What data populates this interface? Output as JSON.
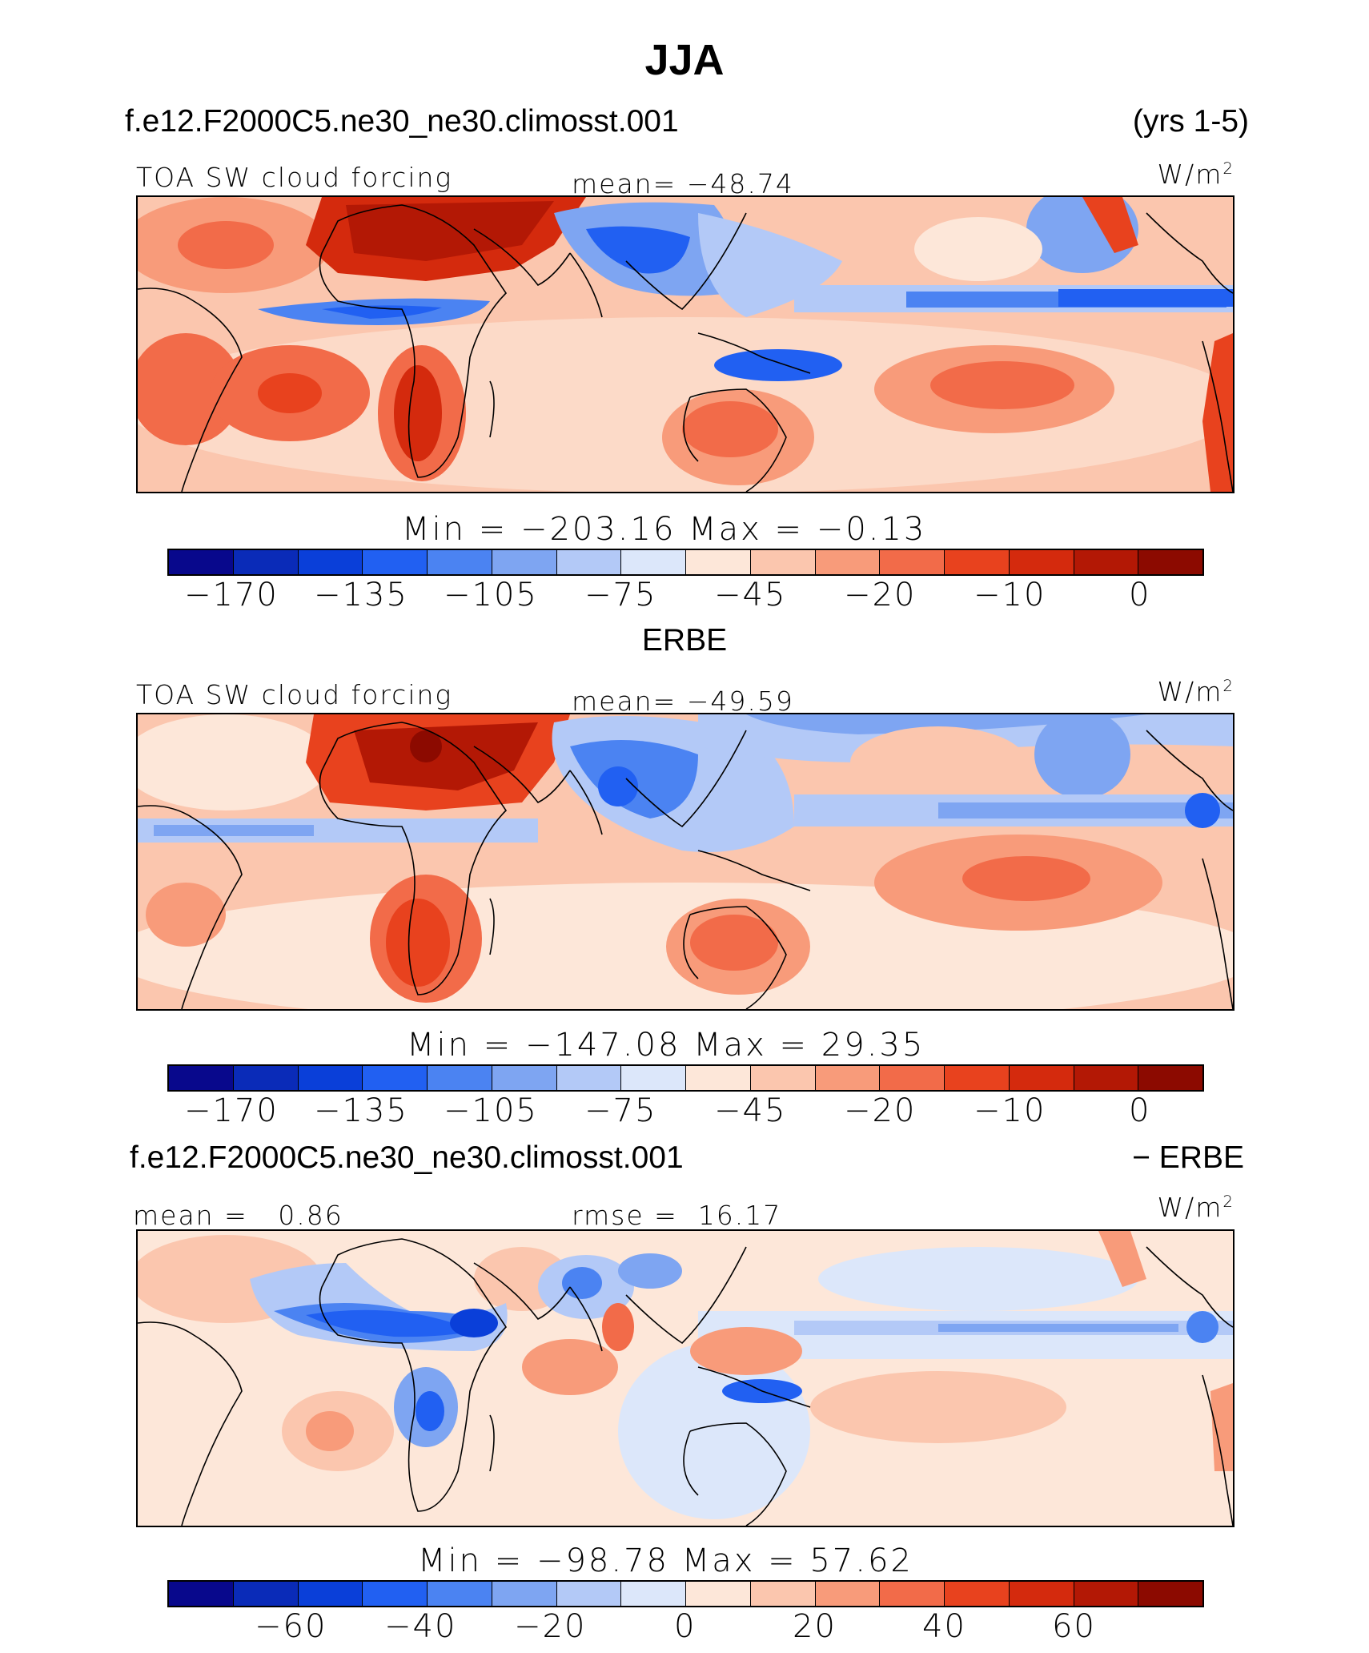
{
  "title": "JJA",
  "colors": [
    "#08088c",
    "#0a2bb8",
    "#0a3fd9",
    "#2160f2",
    "#4b83f2",
    "#7ea5f2",
    "#b3c9f7",
    "#dce7fa",
    "#fde7d9",
    "#fbc6ae",
    "#f89b7a",
    "#f26b49",
    "#e8421e",
    "#d42a0d",
    "#b31805",
    "#8c0a00"
  ],
  "panels": [
    {
      "name": "model",
      "case_title": "f.e12.F2000C5.ne30_ne30.climosst.001",
      "right_title": "(yrs 1-5)",
      "variable": "TOA SW cloud forcing",
      "stat_label": "mean=",
      "stat_value": "-48.74",
      "units": "W/m",
      "units_exp": "2",
      "min_label": "Min",
      "min_value": "-203.16",
      "max_label": "Max",
      "max_value": "-0.13",
      "colorbar_ticks": [
        "-170",
        "-135",
        "-105",
        "-75",
        "-45",
        "-20",
        "-10",
        "0"
      ]
    },
    {
      "name": "obs",
      "case_title": "ERBE",
      "variable": "TOA SW cloud forcing",
      "stat_label": "mean=",
      "stat_value": "-49.59",
      "units": "W/m",
      "units_exp": "2",
      "min_label": "Min",
      "min_value": "-147.08",
      "max_label": "Max",
      "max_value": "29.35",
      "colorbar_ticks": [
        "-170",
        "-135",
        "-105",
        "-75",
        "-45",
        "-20",
        "-10",
        "0"
      ]
    },
    {
      "name": "difference",
      "case_title": "f.e12.F2000C5.ne30_ne30.climosst.001",
      "right_title": "- ERBE",
      "mean_label": "mean =",
      "mean_value": "0.86",
      "rmse_label": "rmse =",
      "rmse_value": "16.17",
      "units": "W/m",
      "units_exp": "2",
      "min_label": "Min",
      "min_value": "-98.78",
      "max_label": "Max",
      "max_value": "57.62",
      "colorbar_ticks": [
        "-60",
        "-40",
        "-20",
        "0",
        "20",
        "40",
        "60"
      ]
    }
  ],
  "chart_data": [
    {
      "type": "heatmap",
      "title": "JJA",
      "subtitle": "f.e12.F2000C5.ne30_ne30.climosst.001 (yrs 1-5)",
      "variable": "TOA SW cloud forcing",
      "units": "W/m2",
      "mean": -48.74,
      "min": -203.16,
      "max": -0.13,
      "levels": [
        -170,
        -135,
        -105,
        -75,
        -45,
        -20,
        -10,
        0
      ]
    },
    {
      "type": "heatmap",
      "title": "ERBE",
      "variable": "TOA SW cloud forcing",
      "units": "W/m2",
      "mean": -49.59,
      "min": -147.08,
      "max": 29.35,
      "levels": [
        -170,
        -135,
        -105,
        -75,
        -45,
        -20,
        -10,
        0
      ]
    },
    {
      "type": "heatmap",
      "title": "f.e12.F2000C5.ne30_ne30.climosst.001 - ERBE",
      "units": "W/m2",
      "mean": 0.86,
      "rmse": 16.17,
      "min": -98.78,
      "max": 57.62,
      "levels": [
        -60,
        -40,
        -20,
        0,
        20,
        40,
        60
      ]
    }
  ]
}
